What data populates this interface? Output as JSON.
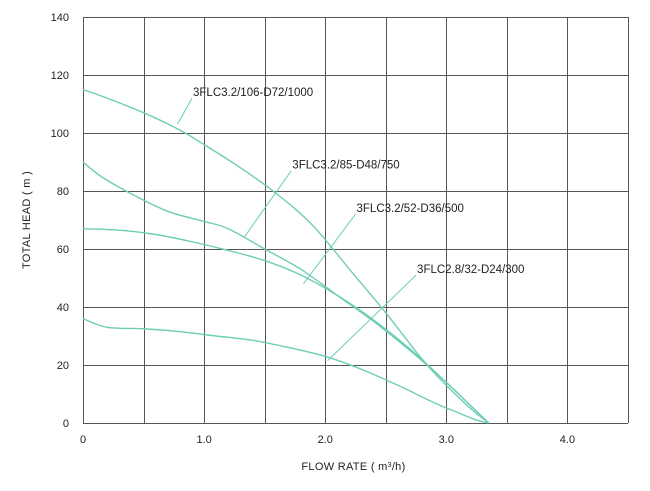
{
  "chart_data": {
    "type": "line",
    "xlabel": "FLOW RATE",
    "xunit_prefix": "( m",
    "xunit_sup": "3",
    "xunit_suffix": "/h)",
    "ylabel": "TOTAL HEAD ( m )",
    "xlim": [
      0,
      4.5
    ],
    "ylim": [
      0,
      140
    ],
    "x_ticks": [
      {
        "value": 0,
        "label": "0"
      },
      {
        "value": 1,
        "label": "1.0"
      },
      {
        "value": 2,
        "label": "2.0"
      },
      {
        "value": 3,
        "label": "3.0"
      },
      {
        "value": 4,
        "label": "4.0"
      }
    ],
    "y_ticks": [
      {
        "value": 0,
        "label": "0"
      },
      {
        "value": 20,
        "label": "20"
      },
      {
        "value": 40,
        "label": "40"
      },
      {
        "value": 60,
        "label": "60"
      },
      {
        "value": 80,
        "label": "80"
      },
      {
        "value": 100,
        "label": "100"
      },
      {
        "value": 120,
        "label": "120"
      },
      {
        "value": 140,
        "label": "140"
      }
    ],
    "grid": true,
    "grid_color": "#555555",
    "line_color": "#6ecdb6",
    "series": [
      {
        "name": "3FLC3.2/106-D72/1000",
        "x": [
          0,
          0.2,
          0.5,
          0.8,
          1.0,
          1.3,
          1.6,
          1.9,
          2.2,
          2.5,
          2.8,
          3.0,
          3.2,
          3.35
        ],
        "y": [
          115,
          112,
          107,
          101,
          96,
          88,
          79,
          68,
          53,
          38,
          22,
          13,
          5,
          0
        ],
        "label_anchor": [
          0.78,
          103
        ],
        "label_pos": [
          0.9,
          112
        ]
      },
      {
        "name": "3FLC3.2/85-D48/750",
        "x": [
          0,
          0.15,
          0.4,
          0.7,
          1.0,
          1.2,
          1.5,
          1.8,
          2.1,
          2.4,
          2.7,
          3.0,
          3.2,
          3.35
        ],
        "y": [
          90,
          85,
          79,
          73,
          69.5,
          67,
          60,
          53,
          44,
          35,
          25,
          14,
          6,
          0
        ],
        "label_anchor": [
          1.33,
          64
        ],
        "label_pos": [
          1.72,
          87
        ]
      },
      {
        "name": "3FLC3.2/52-D36/500",
        "x": [
          0,
          0.3,
          0.6,
          0.9,
          1.2,
          1.5,
          1.8,
          2.1,
          2.4,
          2.7,
          3.0,
          3.2,
          3.35
        ],
        "y": [
          67,
          66.5,
          65,
          62.5,
          59.5,
          56,
          51,
          44,
          35.5,
          25.5,
          14,
          6,
          0
        ],
        "label_anchor": [
          1.82,
          48
        ],
        "label_pos": [
          2.25,
          72
        ]
      },
      {
        "name": "3FLC2.8/32-D24/300",
        "x": [
          0,
          0.2,
          0.5,
          0.8,
          1.1,
          1.4,
          1.7,
          2.0,
          2.3,
          2.6,
          2.9,
          3.1,
          3.25,
          3.35
        ],
        "y": [
          36,
          33,
          32.5,
          31.5,
          30,
          28.5,
          26,
          23,
          18.5,
          13,
          7,
          3.5,
          1,
          0
        ],
        "label_anchor": [
          2.02,
          21.5
        ],
        "label_pos": [
          2.75,
          51
        ]
      }
    ]
  }
}
